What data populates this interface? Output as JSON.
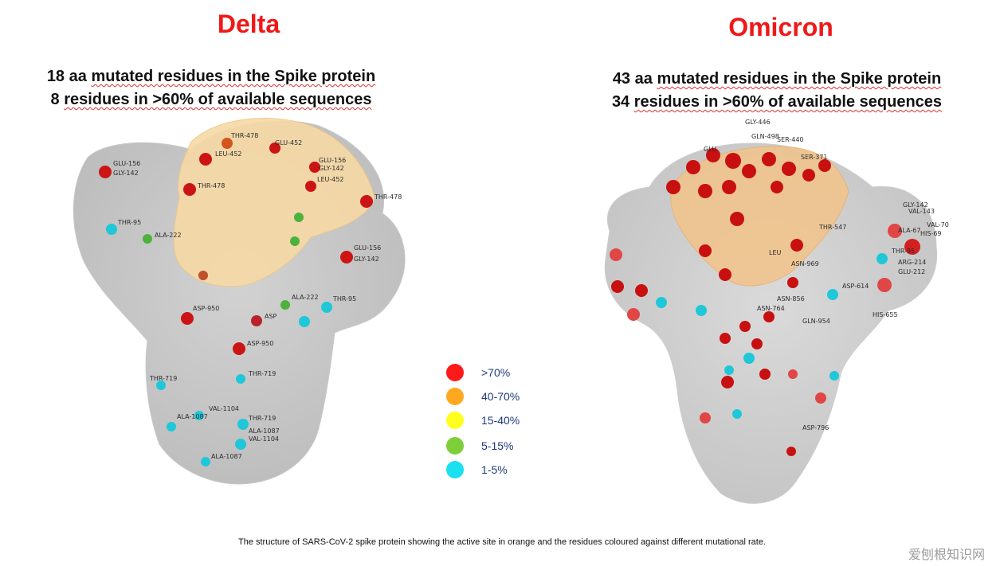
{
  "delta": {
    "title": "Delta",
    "line1": {
      "count": "18 aa",
      "text": "mutated residues in the Spike protein"
    },
    "line2": {
      "count": "8",
      "text": "residues in >60% of available sequences"
    },
    "labels": [
      "THR-478",
      "LEU-452",
      "GLU-452",
      "GLU-156",
      "GLY-142",
      "GLU-156",
      "GLY-142",
      "LEU-452",
      "THR-478",
      "THR-478",
      "THR-95",
      "ALA-222",
      "GLU-156",
      "GLY-142",
      "ALA-222",
      "THR-95",
      "ASP-950",
      "ASP",
      "ASP-950",
      "THR-719",
      "THR-719",
      "VAL-1104",
      "ALA-1087",
      "THR-719",
      "ALA-1087",
      "VAL-1104",
      "ALA-1087"
    ]
  },
  "omicron": {
    "title": "Omicron",
    "line1": {
      "count": "43 aa",
      "text": "mutated residues in the Spike protein"
    },
    "line2": {
      "count": "34",
      "text": "residues in >60% of available sequences"
    },
    "labels": [
      "GLY-446",
      "GLN-498",
      "SER-440",
      "GLU",
      "SER-371",
      "GLY-142",
      "VAL-143",
      "VAL-70",
      "ALA-67",
      "HIS-69",
      "THR-95",
      "ARG-214",
      "GLU-212",
      "THR-547",
      "LEU",
      "ASN-969",
      "ASP-614",
      "ASN-856",
      "HIS-655",
      "ASN-764",
      "GLN-954",
      "ASP-796"
    ]
  },
  "legend": [
    {
      "label": ">70%",
      "color": "#ff1a1a"
    },
    {
      "label": "40-70%",
      "color": "#ffa81f"
    },
    {
      "label": "15-40%",
      "color": "#ffff1f"
    },
    {
      "label": "5-15%",
      "color": "#7dcf3a"
    },
    {
      "label": "1-5%",
      "color": "#1ae0f0"
    }
  ],
  "caption": "The structure of SARS-CoV-2 spike protein showing the active site in orange and the residues coloured against different mutational rate.",
  "watermark": "爱刨根知识网"
}
